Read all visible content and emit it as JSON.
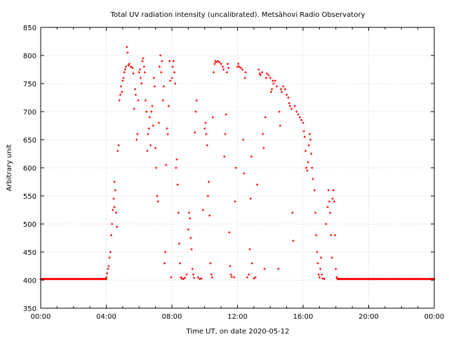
{
  "chart_data": {
    "type": "scatter",
    "title": "Total UV radiation intensity (uncalibrated). Metsähovi Radio Observatory",
    "xlabel": "Time UT, on date 2020-05-12",
    "ylabel": "Arbitrary unit",
    "xlim": [
      0,
      24
    ],
    "ylim": [
      350,
      850
    ],
    "x_ticks": [
      0,
      4,
      8,
      12,
      16,
      20,
      24
    ],
    "x_tick_labels": [
      "00:00",
      "04:00",
      "08:00",
      "12:00",
      "16:00",
      "20:00",
      "00:00"
    ],
    "y_ticks": [
      350,
      400,
      450,
      500,
      550,
      600,
      650,
      700,
      750,
      800,
      850
    ],
    "y_tick_labels": [
      "350",
      "400",
      "450",
      "500",
      "550",
      "600",
      "650",
      "700",
      "750",
      "800",
      "850"
    ],
    "grid": true,
    "marker_color": "#ff0000",
    "baseline_segments": [
      {
        "from": 0,
        "to": 4.0,
        "value": 402
      },
      {
        "from": 18.1,
        "to": 24,
        "value": 402
      }
    ],
    "points": [
      [
        4.0,
        405
      ],
      [
        4.05,
        412
      ],
      [
        4.1,
        420
      ],
      [
        4.15,
        425
      ],
      [
        4.2,
        440
      ],
      [
        4.25,
        450
      ],
      [
        4.3,
        480
      ],
      [
        4.35,
        500
      ],
      [
        4.4,
        525
      ],
      [
        4.45,
        545
      ],
      [
        4.5,
        530
      ],
      [
        4.55,
        560
      ],
      [
        4.6,
        520
      ],
      [
        4.5,
        575
      ],
      [
        4.65,
        495
      ],
      [
        4.7,
        630
      ],
      [
        4.75,
        640
      ],
      [
        4.8,
        720
      ],
      [
        4.85,
        730
      ],
      [
        4.9,
        745
      ],
      [
        4.95,
        735
      ],
      [
        5.0,
        755
      ],
      [
        5.05,
        760
      ],
      [
        5.1,
        770
      ],
      [
        5.15,
        775
      ],
      [
        5.2,
        780
      ],
      [
        5.25,
        815
      ],
      [
        5.3,
        805
      ],
      [
        5.35,
        782
      ],
      [
        5.4,
        785
      ],
      [
        5.5,
        780
      ],
      [
        5.6,
        778
      ],
      [
        5.65,
        768
      ],
      [
        5.7,
        705
      ],
      [
        5.75,
        740
      ],
      [
        5.8,
        730
      ],
      [
        5.85,
        650
      ],
      [
        5.9,
        660
      ],
      [
        5.95,
        720
      ],
      [
        6.0,
        770
      ],
      [
        6.05,
        775
      ],
      [
        6.1,
        760
      ],
      [
        6.15,
        750
      ],
      [
        6.2,
        790
      ],
      [
        6.25,
        795
      ],
      [
        6.3,
        780
      ],
      [
        6.35,
        770
      ],
      [
        6.4,
        720
      ],
      [
        6.45,
        700
      ],
      [
        6.5,
        630
      ],
      [
        6.55,
        660
      ],
      [
        6.6,
        670
      ],
      [
        6.65,
        690
      ],
      [
        6.7,
        640
      ],
      [
        6.75,
        700
      ],
      [
        6.8,
        710
      ],
      [
        6.85,
        675
      ],
      [
        6.9,
        760
      ],
      [
        6.95,
        745
      ],
      [
        7.0,
        635
      ],
      [
        7.05,
        600
      ],
      [
        7.1,
        550
      ],
      [
        7.15,
        540
      ],
      [
        7.2,
        680
      ],
      [
        7.25,
        780
      ],
      [
        7.3,
        800
      ],
      [
        7.35,
        770
      ],
      [
        7.4,
        790
      ],
      [
        7.45,
        720
      ],
      [
        7.5,
        745
      ],
      [
        7.55,
        430
      ],
      [
        7.6,
        450
      ],
      [
        7.65,
        605
      ],
      [
        7.7,
        670
      ],
      [
        7.75,
        660
      ],
      [
        7.8,
        710
      ],
      [
        7.85,
        790
      ],
      [
        7.9,
        755
      ],
      [
        7.95,
        405
      ],
      [
        8.0,
        760
      ],
      [
        8.05,
        780
      ],
      [
        8.1,
        790
      ],
      [
        8.15,
        770
      ],
      [
        8.2,
        750
      ],
      [
        8.25,
        600
      ],
      [
        8.3,
        615
      ],
      [
        8.35,
        570
      ],
      [
        8.4,
        520
      ],
      [
        8.45,
        465
      ],
      [
        8.5,
        430
      ],
      [
        8.55,
        405
      ],
      [
        8.6,
        403
      ],
      [
        8.7,
        402
      ],
      [
        8.8,
        404
      ],
      [
        8.9,
        410
      ],
      [
        9.0,
        490
      ],
      [
        9.05,
        520
      ],
      [
        9.1,
        510
      ],
      [
        9.15,
        475
      ],
      [
        9.2,
        455
      ],
      [
        9.25,
        420
      ],
      [
        9.3,
        410
      ],
      [
        9.35,
        404
      ],
      [
        9.4,
        663
      ],
      [
        9.45,
        700
      ],
      [
        9.5,
        720
      ],
      [
        9.6,
        405
      ],
      [
        9.7,
        402
      ],
      [
        9.8,
        403
      ],
      [
        9.9,
        525
      ],
      [
        10.0,
        670
      ],
      [
        10.05,
        680
      ],
      [
        10.1,
        660
      ],
      [
        10.15,
        640
      ],
      [
        10.2,
        550
      ],
      [
        10.25,
        575
      ],
      [
        10.3,
        515
      ],
      [
        10.35,
        430
      ],
      [
        10.4,
        410
      ],
      [
        10.45,
        405
      ],
      [
        10.5,
        690
      ],
      [
        10.55,
        770
      ],
      [
        10.6,
        785
      ],
      [
        10.65,
        790
      ],
      [
        10.7,
        788
      ],
      [
        10.8,
        790
      ],
      [
        10.9,
        788
      ],
      [
        11.0,
        785
      ],
      [
        11.1,
        780
      ],
      [
        11.15,
        775
      ],
      [
        11.2,
        620
      ],
      [
        11.25,
        660
      ],
      [
        11.3,
        695
      ],
      [
        11.35,
        770
      ],
      [
        11.4,
        785
      ],
      [
        11.45,
        778
      ],
      [
        11.5,
        485
      ],
      [
        11.55,
        425
      ],
      [
        11.6,
        410
      ],
      [
        11.65,
        406
      ],
      [
        11.8,
        405
      ],
      [
        11.85,
        540
      ],
      [
        11.9,
        600
      ],
      [
        12.0,
        780
      ],
      [
        12.05,
        785
      ],
      [
        12.1,
        780
      ],
      [
        12.2,
        778
      ],
      [
        12.3,
        775
      ],
      [
        12.35,
        650
      ],
      [
        12.4,
        590
      ],
      [
        12.45,
        760
      ],
      [
        12.5,
        770
      ],
      [
        12.6,
        405
      ],
      [
        12.7,
        410
      ],
      [
        12.75,
        455
      ],
      [
        12.8,
        545
      ],
      [
        12.85,
        620
      ],
      [
        12.9,
        430
      ],
      [
        13.0,
        403
      ],
      [
        13.1,
        405
      ],
      [
        13.2,
        570
      ],
      [
        13.3,
        775
      ],
      [
        13.35,
        768
      ],
      [
        13.4,
        765
      ],
      [
        13.5,
        770
      ],
      [
        13.55,
        660
      ],
      [
        13.6,
        635
      ],
      [
        13.65,
        420
      ],
      [
        13.7,
        690
      ],
      [
        13.75,
        760
      ],
      [
        13.8,
        768
      ],
      [
        13.9,
        765
      ],
      [
        14.0,
        760
      ],
      [
        14.05,
        735
      ],
      [
        14.1,
        740
      ],
      [
        14.15,
        755
      ],
      [
        14.2,
        750
      ],
      [
        14.3,
        755
      ],
      [
        14.4,
        745
      ],
      [
        14.5,
        420
      ],
      [
        14.55,
        700
      ],
      [
        14.6,
        675
      ],
      [
        14.65,
        740
      ],
      [
        14.7,
        735
      ],
      [
        14.8,
        745
      ],
      [
        14.9,
        740
      ],
      [
        15.0,
        730
      ],
      [
        15.1,
        725
      ],
      [
        15.15,
        715
      ],
      [
        15.2,
        710
      ],
      [
        15.3,
        705
      ],
      [
        15.35,
        520
      ],
      [
        15.4,
        470
      ],
      [
        15.5,
        710
      ],
      [
        15.6,
        700
      ],
      [
        15.7,
        695
      ],
      [
        15.8,
        690
      ],
      [
        15.9,
        685
      ],
      [
        16.0,
        680
      ],
      [
        16.05,
        665
      ],
      [
        16.1,
        655
      ],
      [
        16.15,
        630
      ],
      [
        16.2,
        600
      ],
      [
        16.25,
        595
      ],
      [
        16.3,
        610
      ],
      [
        16.35,
        640
      ],
      [
        16.4,
        660
      ],
      [
        16.45,
        650
      ],
      [
        16.5,
        625
      ],
      [
        16.55,
        600
      ],
      [
        16.6,
        580
      ],
      [
        16.7,
        560
      ],
      [
        16.75,
        520
      ],
      [
        16.8,
        480
      ],
      [
        16.85,
        450
      ],
      [
        16.9,
        430
      ],
      [
        16.95,
        410
      ],
      [
        17.0,
        405
      ],
      [
        17.05,
        420
      ],
      [
        17.1,
        440
      ],
      [
        17.15,
        410
      ],
      [
        17.2,
        403
      ],
      [
        17.3,
        402
      ],
      [
        17.4,
        500
      ],
      [
        17.5,
        530
      ],
      [
        17.55,
        560
      ],
      [
        17.6,
        540
      ],
      [
        17.65,
        520
      ],
      [
        17.7,
        480
      ],
      [
        17.75,
        440
      ],
      [
        17.8,
        545
      ],
      [
        17.85,
        560
      ],
      [
        17.9,
        540
      ],
      [
        17.95,
        480
      ],
      [
        18.0,
        420
      ],
      [
        18.05,
        405
      ],
      [
        18.1,
        403
      ]
    ]
  }
}
